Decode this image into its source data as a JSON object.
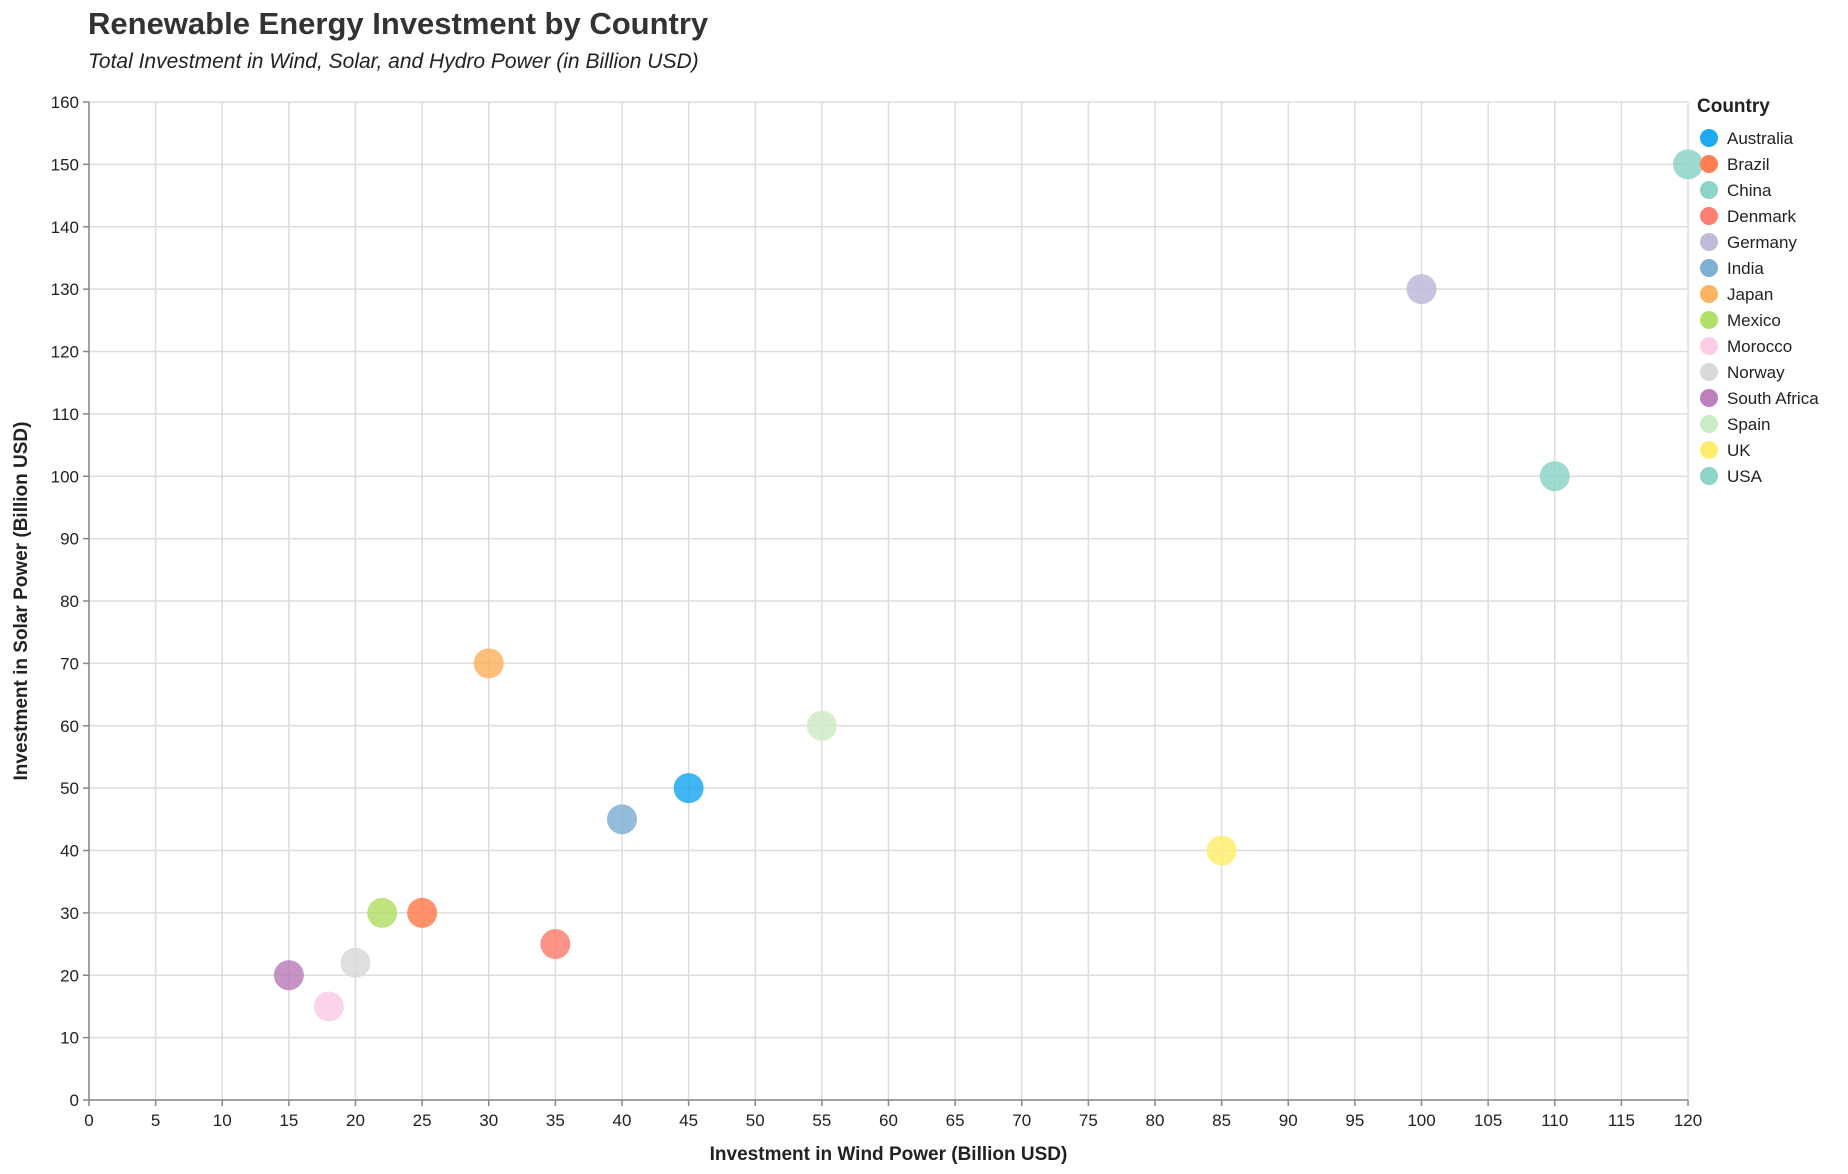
{
  "chart_data": {
    "type": "scatter",
    "title": "Renewable Energy Investment by Country",
    "subtitle": "Total Investment in Wind, Solar, and Hydro Power (in Billion USD)",
    "xlabel": "Investment in Wind Power (Billion USD)",
    "ylabel": "Investment in Solar Power (Billion USD)",
    "xlim": [
      0,
      120
    ],
    "ylim": [
      0,
      160
    ],
    "xticks": [
      0,
      5,
      10,
      15,
      20,
      25,
      30,
      35,
      40,
      45,
      50,
      55,
      60,
      65,
      70,
      75,
      80,
      85,
      90,
      95,
      100,
      105,
      110,
      115,
      120
    ],
    "yticks": [
      0,
      10,
      20,
      30,
      40,
      50,
      60,
      70,
      80,
      90,
      100,
      110,
      120,
      130,
      140,
      150,
      160
    ],
    "grid": true,
    "legend": {
      "title": "Country",
      "placement": "top-right"
    },
    "points": [
      {
        "country": "Australia",
        "x": 45,
        "y": 50,
        "color": "#1eaaf1"
      },
      {
        "country": "Brazil",
        "x": 25,
        "y": 30,
        "color": "#ff7f50"
      },
      {
        "country": "China",
        "x": 120,
        "y": 150,
        "color": "#8dd3c7"
      },
      {
        "country": "Denmark",
        "x": 35,
        "y": 25,
        "color": "#fb8072"
      },
      {
        "country": "Germany",
        "x": 100,
        "y": 130,
        "color": "#bebada"
      },
      {
        "country": "India",
        "x": 40,
        "y": 45,
        "color": "#80b1d3"
      },
      {
        "country": "Japan",
        "x": 30,
        "y": 70,
        "color": "#fdb462"
      },
      {
        "country": "Mexico",
        "x": 22,
        "y": 30,
        "color": "#b3de69"
      },
      {
        "country": "Morocco",
        "x": 18,
        "y": 15,
        "color": "#fccde5"
      },
      {
        "country": "Norway",
        "x": 20,
        "y": 22,
        "color": "#d9d9d9"
      },
      {
        "country": "South Africa",
        "x": 15,
        "y": 20,
        "color": "#bc80bd"
      },
      {
        "country": "Spain",
        "x": 55,
        "y": 60,
        "color": "#ccebc5"
      },
      {
        "country": "UK",
        "x": 85,
        "y": 40,
        "color": "#ffed6f"
      },
      {
        "country": "USA",
        "x": 110,
        "y": 100,
        "color": "#8dd3c7"
      }
    ]
  }
}
